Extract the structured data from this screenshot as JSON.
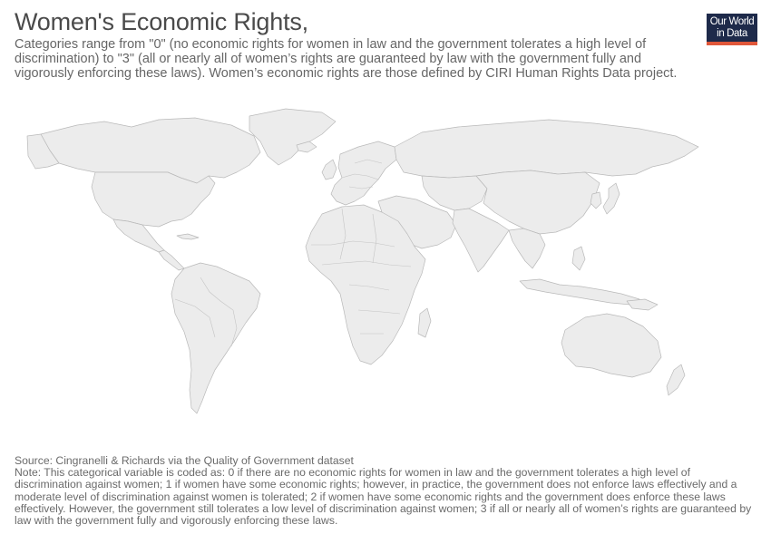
{
  "header": {
    "title": "Women's Economic Rights,",
    "subtitle": "Categories range from \"0\" (no economic rights for women in law and the government tolerates a high level of discrimination) to \"3\" (all or nearly all of women’s rights are guaranteed by law with the government fully and vigorously enforcing these laws). Women’s economic rights are those defined by CIRI Human Rights Data project."
  },
  "logo": {
    "line1": "Our World",
    "line2": "in Data",
    "bar_color": "#e0573a",
    "bg_color": "#1e2a4a"
  },
  "map": {
    "land_color": "#ececec",
    "border_color": "#b9b9b9"
  },
  "footer": {
    "source": "Source: Cingranelli & Richards via the Quality of Government dataset",
    "note": "Note: This categorical variable is coded as: 0 if there are no economic rights for women in law and the government tolerates a high level of discrimination against women; 1 if women have some economic rights; however, in practice, the government does not enforce laws effectively and a moderate level of discrimination against women is tolerated; 2 if women have some economic rights and the government does enforce these laws effectively. However, the government still tolerates a low level of discrimination against women; 3 if all or nearly all of women’s rights are guaranteed by law with the government fully and vigorously enforcing these laws."
  }
}
